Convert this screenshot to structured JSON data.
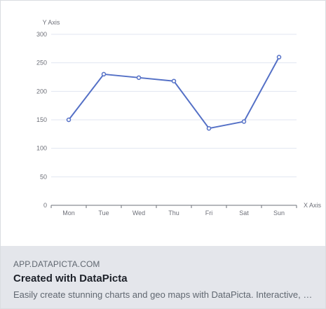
{
  "chart_data": {
    "type": "line",
    "categories": [
      "Mon",
      "Tue",
      "Wed",
      "Thu",
      "Fri",
      "Sat",
      "Sun"
    ],
    "series": [
      {
        "values": [
          150,
          230,
          224,
          218,
          135,
          147,
          260
        ]
      }
    ],
    "xlabel": "X Axis",
    "ylabel": "Y Axis",
    "ylim": [
      0,
      300
    ],
    "yticks": [
      0,
      50,
      100,
      150,
      200,
      250,
      300
    ],
    "grid": true,
    "colors": {
      "line": "#5470c6",
      "grid": "#e0e6f1",
      "axis": "#6e7079"
    }
  },
  "preview": {
    "domain": "APP.DATAPICTA.COM",
    "title": "Created with DataPicta",
    "description": "Easily create stunning charts and geo maps with DataPicta. Interactive, data-driven visuals for presentations, reports, dashboards and more."
  }
}
